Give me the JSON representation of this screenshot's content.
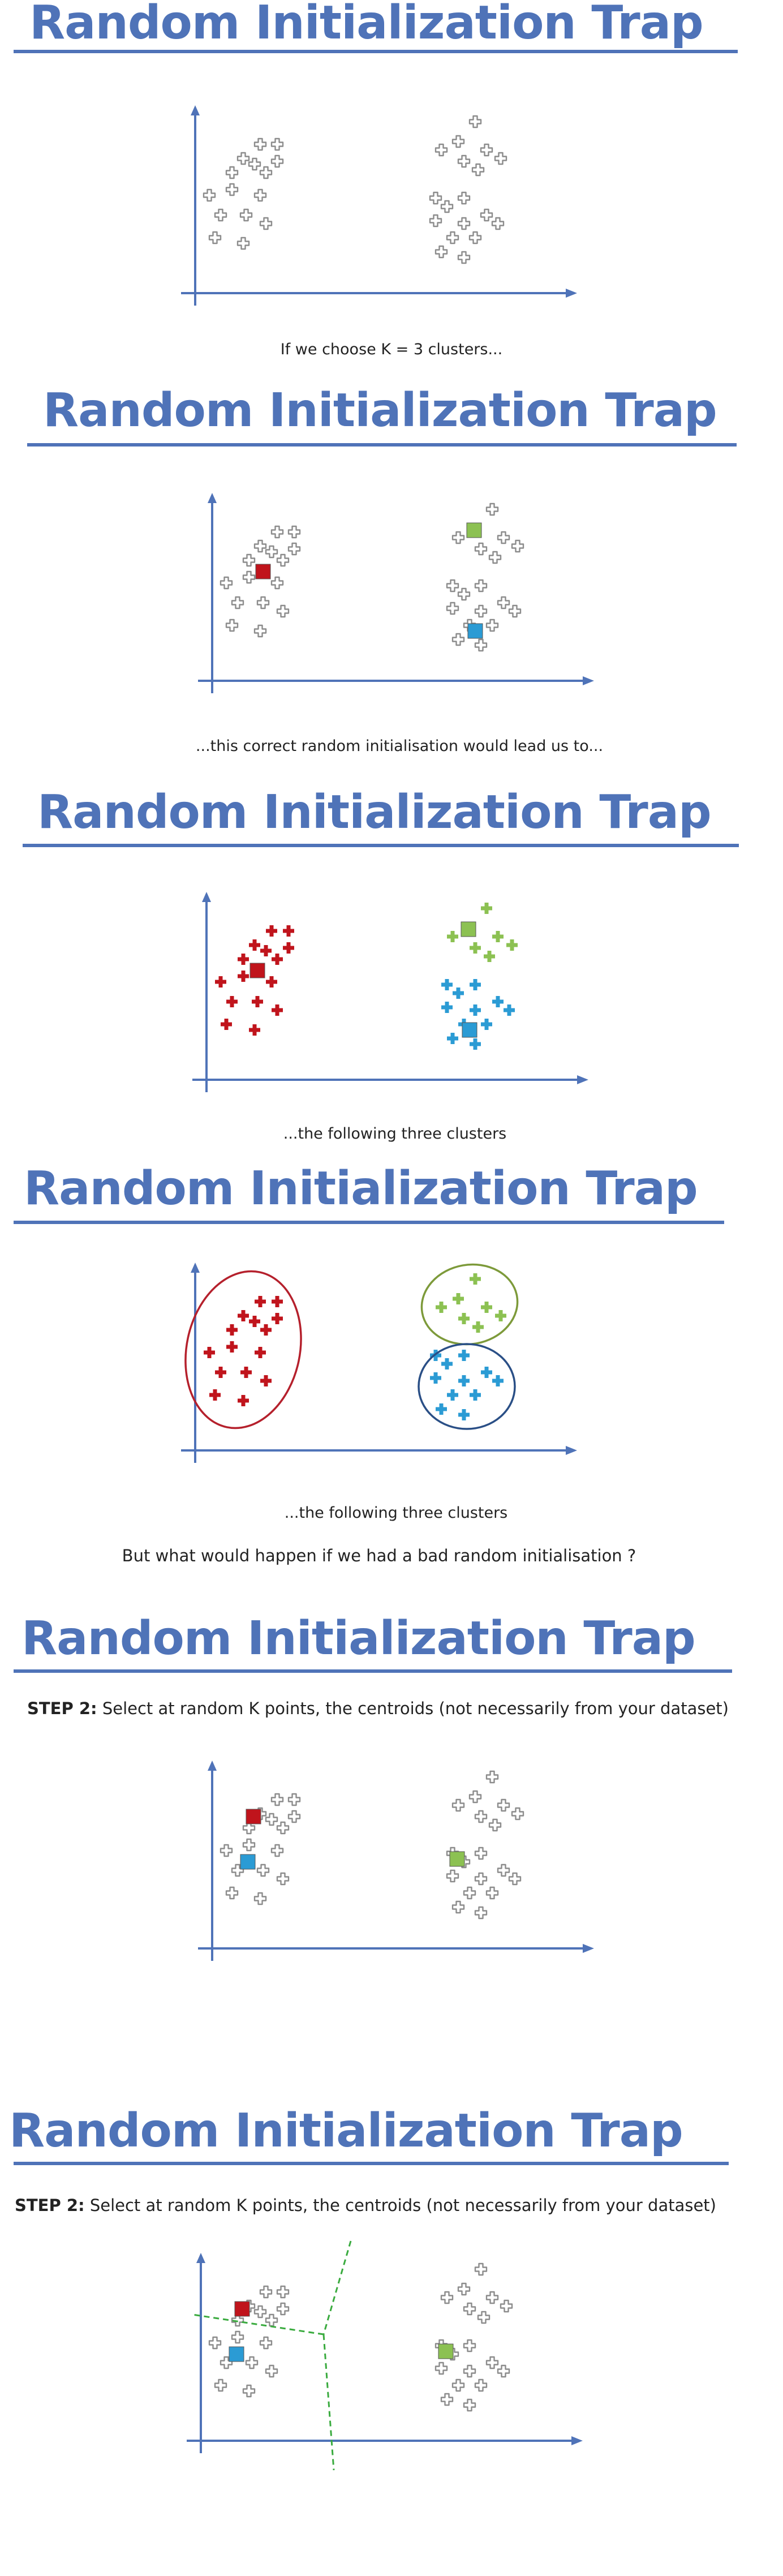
{
  "colors": {
    "title": "#4f73b8",
    "axis": "#4f73b8",
    "point": "#8c8c8c",
    "red_cluster": "#c0141c",
    "green_cluster": "#8cc152",
    "blue_cluster": "#2b9bd4",
    "red_ellipse": "#b5202c",
    "green_ellipse": "#7d9a3a",
    "blue_ellipse": "#2a4f86",
    "boundary": "#3aab3f"
  },
  "slides": [
    {
      "title": "Random Initialization Trap",
      "caption": "If we choose K = 3 clusters..."
    },
    {
      "title": "Random Initialization Trap",
      "caption": "...this correct random initialisation would lead us to..."
    },
    {
      "title": "Random Initialization Trap",
      "caption": "...the following three clusters"
    },
    {
      "title": "Random Initialization Trap",
      "caption": "...the following three clusters",
      "question": "But what would happen if we had a bad random initialisation ?"
    },
    {
      "title": "Random Initialization Trap",
      "step_label": "STEP 2:",
      "step_text": " Select at random K points, the centroids (not necessarily from your dataset)"
    },
    {
      "title": "Random Initialization Trap",
      "step_label": "STEP 2:",
      "step_text": " Select at random K points, the centroids (not necessarily from your dataset)"
    }
  ]
}
